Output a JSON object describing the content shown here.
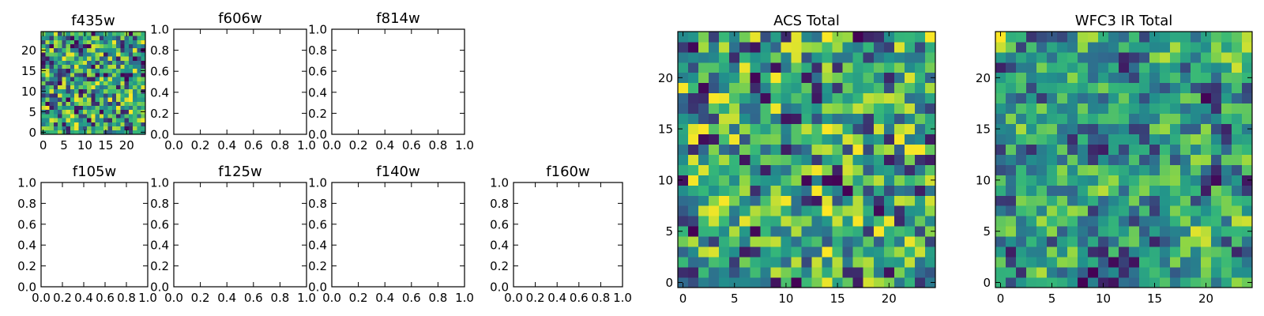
{
  "figure": {
    "colormap": [
      "#440154",
      "#31688e",
      "#21918c",
      "#35b779",
      "#90d743",
      "#fde725"
    ]
  },
  "chart_data": [
    {
      "type": "heatmap",
      "title": "f435w",
      "rows": 25,
      "cols": 25,
      "seed": 11,
      "smooth": 0,
      "xlim": [
        -0.5,
        24.5
      ],
      "ylim": [
        -0.5,
        24.5
      ],
      "xticks": [
        0,
        5,
        10,
        15,
        20
      ],
      "yticks": [
        0,
        5,
        10,
        15,
        20
      ],
      "xticklabels": [
        "0",
        "5",
        "10",
        "15",
        "20"
      ],
      "yticklabels": [
        "0",
        "5",
        "10",
        "15",
        "20"
      ]
    },
    {
      "type": "empty",
      "title": "f606w",
      "xlim": [
        0,
        1
      ],
      "ylim": [
        0,
        1
      ],
      "xticks": [
        0,
        0.2,
        0.4,
        0.6,
        0.8,
        1.0
      ],
      "yticks": [
        0,
        0.2,
        0.4,
        0.6,
        0.8,
        1.0
      ],
      "xticklabels": [
        "0.0",
        "0.2",
        "0.4",
        "0.6",
        "0.8",
        "1.0"
      ],
      "yticklabels": [
        "0.0",
        "0.2",
        "0.4",
        "0.6",
        "0.8",
        "1.0"
      ]
    },
    {
      "type": "empty",
      "title": "f814w",
      "xlim": [
        0,
        1
      ],
      "ylim": [
        0,
        1
      ],
      "xticks": [
        0,
        0.2,
        0.4,
        0.6,
        0.8,
        1.0
      ],
      "yticks": [
        0,
        0.2,
        0.4,
        0.6,
        0.8,
        1.0
      ],
      "xticklabels": [
        "0.0",
        "0.2",
        "0.4",
        "0.6",
        "0.8",
        "1.0"
      ],
      "yticklabels": [
        "0.0",
        "0.2",
        "0.4",
        "0.6",
        "0.8",
        "1.0"
      ]
    },
    {
      "type": "empty",
      "title": "f105w",
      "xlim": [
        0,
        1
      ],
      "ylim": [
        0,
        1
      ],
      "xticks": [
        0,
        0.2,
        0.4,
        0.6,
        0.8,
        1.0
      ],
      "yticks": [
        0,
        0.2,
        0.4,
        0.6,
        0.8,
        1.0
      ],
      "xticklabels": [
        "0.0",
        "0.2",
        "0.4",
        "0.6",
        "0.8",
        "1.0"
      ],
      "yticklabels": [
        "0.0",
        "0.2",
        "0.4",
        "0.6",
        "0.8",
        "1.0"
      ]
    },
    {
      "type": "empty",
      "title": "f125w",
      "xlim": [
        0,
        1
      ],
      "ylim": [
        0,
        1
      ],
      "xticks": [
        0,
        0.2,
        0.4,
        0.6,
        0.8,
        1.0
      ],
      "yticks": [
        0,
        0.2,
        0.4,
        0.6,
        0.8,
        1.0
      ],
      "xticklabels": [
        "0.0",
        "0.2",
        "0.4",
        "0.6",
        "0.8",
        "1.0"
      ],
      "yticklabels": [
        "0.0",
        "0.2",
        "0.4",
        "0.6",
        "0.8",
        "1.0"
      ]
    },
    {
      "type": "empty",
      "title": "f140w",
      "xlim": [
        0,
        1
      ],
      "ylim": [
        0,
        1
      ],
      "xticks": [
        0,
        0.2,
        0.4,
        0.6,
        0.8,
        1.0
      ],
      "yticks": [
        0,
        0.2,
        0.4,
        0.6,
        0.8,
        1.0
      ],
      "xticklabels": [
        "0.0",
        "0.2",
        "0.4",
        "0.6",
        "0.8",
        "1.0"
      ],
      "yticklabels": [
        "0.0",
        "0.2",
        "0.4",
        "0.6",
        "0.8",
        "1.0"
      ]
    },
    {
      "type": "empty",
      "title": "f160w",
      "xlim": [
        0,
        1
      ],
      "ylim": [
        0,
        1
      ],
      "xticks": [
        0,
        0.2,
        0.4,
        0.6,
        0.8,
        1.0
      ],
      "yticks": [
        0,
        0.2,
        0.4,
        0.6,
        0.8,
        1.0
      ],
      "xticklabels": [
        "0.0",
        "0.2",
        "0.4",
        "0.6",
        "0.8",
        "1.0"
      ],
      "yticklabels": [
        "0.0",
        "0.2",
        "0.4",
        "0.6",
        "0.8",
        "1.0"
      ]
    },
    {
      "type": "heatmap",
      "title": "ACS Total",
      "rows": 25,
      "cols": 25,
      "seed": 29,
      "smooth": 0,
      "xlim": [
        -0.5,
        24.5
      ],
      "ylim": [
        -0.5,
        24.5
      ],
      "xticks": [
        0,
        5,
        10,
        15,
        20
      ],
      "yticks": [
        0,
        5,
        10,
        15,
        20
      ],
      "xticklabels": [
        "0",
        "5",
        "10",
        "15",
        "20"
      ],
      "yticklabels": [
        "0",
        "5",
        "10",
        "15",
        "20"
      ]
    },
    {
      "type": "heatmap",
      "title": "WFC3 IR Total",
      "rows": 25,
      "cols": 25,
      "seed": 47,
      "smooth": 1,
      "xlim": [
        -0.5,
        24.5
      ],
      "ylim": [
        -0.5,
        24.5
      ],
      "xticks": [
        0,
        5,
        10,
        15,
        20
      ],
      "yticks": [
        0,
        5,
        10,
        15,
        20
      ],
      "xticklabels": [
        "0",
        "5",
        "10",
        "15",
        "20"
      ],
      "yticklabels": [
        "0",
        "5",
        "10",
        "15",
        "20"
      ]
    }
  ]
}
